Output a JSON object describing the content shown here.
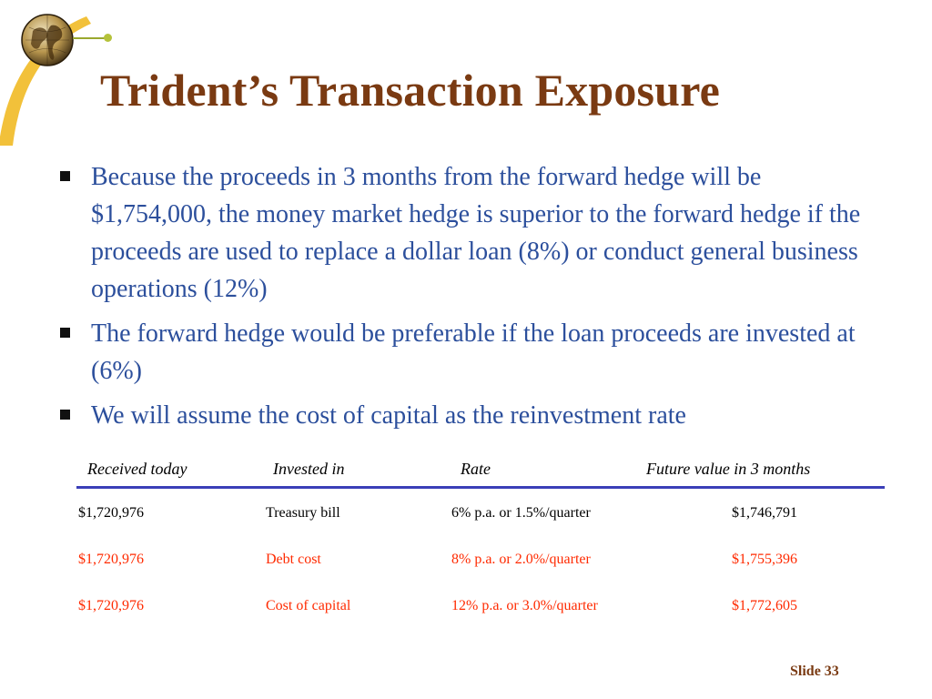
{
  "slide": {
    "title": "Trident’s Transaction Exposure",
    "slide_label": "Slide 33"
  },
  "bullets": [
    "Because the proceeds in 3 months from the forward hedge will be $1,754,000, the money market hedge is superior to the forward hedge if the proceeds are used to replace a dollar loan (8%) or conduct general business operations (12%)",
    "The forward hedge would be preferable if the loan proceeds are invested at (6%)",
    "We will assume the cost of capital as the reinvestment rate"
  ],
  "table": {
    "headers": [
      "Received today",
      "Invested in",
      "Rate",
      "Future value in 3 months"
    ],
    "rows": [
      [
        "$1,720,976",
        "Treasury bill",
        "6% p.a. or 1.5%/quarter",
        "$1,746,791"
      ],
      [
        "$1,720,976",
        "Debt cost",
        "8% p.a. or 2.0%/quarter",
        "$1,755,396"
      ],
      [
        "$1,720,976",
        "Cost of capital",
        "12% p.a. or 3.0%/quarter",
        "$1,772,605"
      ]
    ]
  },
  "colors": {
    "title": "#7a3a12",
    "bullet_text": "#2c4f9c",
    "table_rule": "#3b3fb8",
    "highlight_rows": "#ff2a00",
    "corner_arc": "#f2c13a"
  },
  "icons": [
    "globe-logo-icon",
    "square-bullet-icon"
  ]
}
